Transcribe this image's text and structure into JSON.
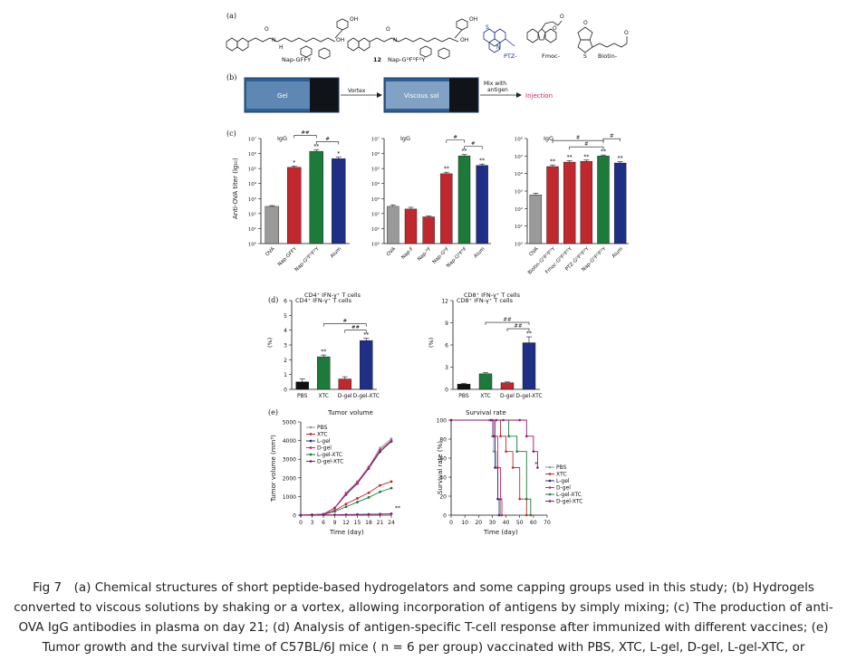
{
  "colors": {
    "gray": "#9a9a9a",
    "red": "#c0282d",
    "green": "#1c7a3a",
    "blue": "#1f2f86",
    "black": "#111111",
    "purple": "#8a1a7a",
    "pink": "#d21e6e",
    "gel_bg": "#2f5f95"
  },
  "panel_a": {
    "label": "(a)",
    "names": [
      "Nap-GFFY",
      "12",
      "Nap-GᴰFᴰFᴰY",
      "PTZ-",
      "Fmoc-",
      "Biotin-"
    ],
    "atoms": [
      "OH",
      "O",
      "H",
      "N",
      "S"
    ]
  },
  "panel_b": {
    "label": "(b)",
    "vial1_text": "Gel",
    "arrow1_text": "Vortex",
    "vial2_text": "Viscous sol",
    "arrow2_text": [
      "Mix with",
      "antigen"
    ],
    "injection_text": "Injection"
  },
  "panel_c": {
    "label": "(c)",
    "ylabel": "Anti-OVA titer (lg₁₀)",
    "title": "IgG",
    "y_ticks": [
      "10⁰",
      "10¹",
      "10²",
      "10³",
      "10⁴",
      "10⁵",
      "10⁶",
      "10⁷"
    ],
    "sig": [
      "**",
      "*",
      "##",
      "#"
    ]
  },
  "panel_d": {
    "label": "(d)",
    "ylabel": "(%)",
    "titles": [
      "CD4⁺ IFN-γ⁺ T cells",
      "CD8⁺ IFN-γ⁺ T cells"
    ]
  },
  "panel_e": {
    "label": "(e)",
    "left_title": "Tumor volume",
    "left_ylabel": "Tumor volume (mm³)",
    "left_xlabel": "Time (day)",
    "right_title": "Survival rate",
    "right_ylabel": "Survival rate (%)",
    "right_xlabel": "Time (day)",
    "legend": [
      "PBS",
      "XTC",
      "L-gel",
      "D-gel",
      "L-gel-XTC",
      "D-gel-XTC"
    ]
  },
  "chart_data": [
    {
      "type": "bar",
      "panel": "c-1",
      "title": "IgG",
      "ylabel": "Anti-OVA titer (lg₁₀)",
      "log_scale": true,
      "ylim": [
        1,
        10000000
      ],
      "categories": [
        "OVA",
        "Nap-GFFY",
        "Nap-GᴰFᴰFᴰY",
        "Alum"
      ],
      "values": [
        300,
        120000,
        1400000,
        450000
      ],
      "errors": [
        40,
        25000,
        350000,
        120000
      ],
      "colors": [
        "#9a9a9a",
        "#c0282d",
        "#1c7a3a",
        "#1f2f86"
      ],
      "marks": [
        "",
        "*",
        "**",
        "*"
      ],
      "brackets": [
        {
          "from": 1,
          "to": 2,
          "label": "##"
        },
        {
          "from": 2,
          "to": 3,
          "label": "#"
        }
      ]
    },
    {
      "type": "bar",
      "panel": "c-2",
      "title": "IgG",
      "log_scale": true,
      "ylim": [
        1,
        10000000
      ],
      "categories": [
        "OVA",
        "Nap-F",
        "Nap-ᴰF",
        "Nap-GᴰF",
        "Nap-GᴰFᴰF",
        "Alum"
      ],
      "values": [
        300,
        200,
        60,
        45000,
        700000,
        160000
      ],
      "errors": [
        80,
        60,
        8,
        12000,
        150000,
        40000
      ],
      "colors": [
        "#9a9a9a",
        "#c0282d",
        "#c0282d",
        "#c0282d",
        "#1c7a3a",
        "#1f2f86"
      ],
      "marks": [
        "",
        "",
        "",
        "**",
        "**",
        "**"
      ],
      "brackets": [
        {
          "from": 3,
          "to": 4,
          "label": "#"
        },
        {
          "from": 4,
          "to": 5,
          "label": "#"
        }
      ]
    },
    {
      "type": "bar",
      "panel": "c-3",
      "title": "IgG",
      "log_scale": true,
      "ylim": [
        1,
        1000000
      ],
      "categories": [
        "OVA",
        "Biotin-GᴰFᴰFᴰY",
        "Fmoc-GᴰFᴰFᴰY",
        "PTZ-GᴰFᴰFᴰY",
        "Nap-GᴰFᴰFᴰY",
        "Alum"
      ],
      "values": [
        600,
        25000,
        45000,
        50000,
        100000,
        40000
      ],
      "errors": [
        150,
        6000,
        9000,
        9000,
        15000,
        8000
      ],
      "colors": [
        "#9a9a9a",
        "#c0282d",
        "#c0282d",
        "#c0282d",
        "#1c7a3a",
        "#1f2f86"
      ],
      "marks": [
        "",
        "**",
        "**",
        "**",
        "**",
        "**"
      ],
      "brackets": [
        {
          "from": 1,
          "to": 4,
          "label": "#"
        },
        {
          "from": 2,
          "to": 4,
          "label": "#"
        },
        {
          "from": 4,
          "to": 5,
          "label": "#"
        }
      ]
    },
    {
      "type": "bar",
      "panel": "d-1",
      "title": "CD4⁺ IFN-γ⁺ T cells",
      "ylabel": "(%)",
      "ylim": [
        0,
        6
      ],
      "y_ticks": [
        0,
        1,
        2,
        3,
        4,
        5,
        6
      ],
      "categories": [
        "PBS",
        "XTC",
        "D-gel",
        "D-gel-XTC"
      ],
      "values": [
        0.5,
        2.2,
        0.7,
        3.3
      ],
      "errors": [
        0.2,
        0.12,
        0.15,
        0.15
      ],
      "colors": [
        "#111111",
        "#1c7a3a",
        "#c0282d",
        "#1f2f86"
      ],
      "marks": [
        "",
        "**",
        "",
        "**"
      ],
      "brackets": [
        {
          "from": 1,
          "to": 3,
          "label": "#"
        },
        {
          "from": 2,
          "to": 3,
          "label": "##"
        }
      ]
    },
    {
      "type": "bar",
      "panel": "d-2",
      "title": "CD8⁺ IFN-γ⁺ T cells",
      "ylabel": "(%)",
      "ylim": [
        0,
        12
      ],
      "y_ticks": [
        0,
        3,
        6,
        9,
        12
      ],
      "categories": [
        "PBS",
        "XTC",
        "D-gel",
        "D-gel-XTC"
      ],
      "values": [
        0.7,
        2.1,
        0.9,
        6.3
      ],
      "errors": [
        0.1,
        0.15,
        0.1,
        0.8
      ],
      "colors": [
        "#111111",
        "#1c7a3a",
        "#c0282d",
        "#1f2f86"
      ],
      "marks": [
        "",
        "",
        "",
        "**"
      ],
      "brackets": [
        {
          "from": 1,
          "to": 3,
          "label": "##"
        },
        {
          "from": 2,
          "to": 3,
          "label": "##"
        }
      ]
    },
    {
      "type": "line",
      "panel": "e-1",
      "title": "Tumor volume",
      "xlabel": "Time (day)",
      "ylabel": "Tumor volume (mm³)",
      "xlim": [
        0,
        24
      ],
      "ylim": [
        0,
        5000
      ],
      "x_ticks": [
        0,
        3,
        6,
        9,
        12,
        15,
        18,
        21,
        24
      ],
      "y_ticks": [
        0,
        1000,
        2000,
        3000,
        4000,
        5000
      ],
      "x": [
        0,
        3,
        6,
        9,
        12,
        15,
        18,
        21,
        24
      ],
      "series": [
        {
          "name": "PBS",
          "color": "#9a9a9a",
          "values": [
            0,
            20,
            50,
            400,
            1200,
            1800,
            2600,
            3600,
            4100
          ]
        },
        {
          "name": "XTC",
          "color": "#c0282d",
          "values": [
            0,
            15,
            40,
            250,
            600,
            900,
            1200,
            1600,
            1800
          ]
        },
        {
          "name": "L-gel",
          "color": "#1f2f86",
          "values": [
            0,
            20,
            50,
            380,
            1100,
            1700,
            2500,
            3400,
            3950
          ]
        },
        {
          "name": "D-gel",
          "color": "#d21e6e",
          "values": [
            0,
            20,
            50,
            390,
            1150,
            1750,
            2550,
            3500,
            4000
          ]
        },
        {
          "name": "L-gel-XTC",
          "color": "#1c7a3a",
          "values": [
            0,
            15,
            30,
            200,
            450,
            700,
            950,
            1250,
            1450
          ]
        },
        {
          "name": "D-gel-XTC",
          "color": "#8a1a7a",
          "values": [
            0,
            10,
            15,
            20,
            30,
            40,
            50,
            60,
            80
          ]
        }
      ],
      "annotations": [
        "**"
      ]
    },
    {
      "type": "line",
      "panel": "e-2",
      "title": "Survival rate",
      "xlabel": "Time (day)",
      "ylabel": "Survival rate (%)",
      "xlim": [
        0,
        70
      ],
      "ylim": [
        0,
        100
      ],
      "x_ticks": [
        0,
        10,
        20,
        30,
        40,
        50,
        60,
        70
      ],
      "y_ticks": [
        0,
        20,
        40,
        60,
        80,
        100
      ],
      "series": [
        {
          "name": "PBS",
          "color": "#9a9a9a",
          "x": [
            0,
            28,
            30,
            31,
            33,
            34,
            36
          ],
          "values": [
            100,
            100,
            83,
            67,
            50,
            17,
            0
          ]
        },
        {
          "name": "XTC",
          "color": "#c0282d",
          "x": [
            0,
            33,
            36,
            40,
            45,
            50,
            55
          ],
          "values": [
            100,
            100,
            83,
            67,
            50,
            17,
            0
          ]
        },
        {
          "name": "L-gel",
          "color": "#1f2f86",
          "x": [
            0,
            29,
            31,
            32,
            34,
            35
          ],
          "values": [
            100,
            100,
            83,
            50,
            17,
            0
          ]
        },
        {
          "name": "D-gel",
          "color": "#d21e6e",
          "x": [
            0,
            30,
            32,
            34,
            36,
            37
          ],
          "values": [
            100,
            100,
            83,
            50,
            17,
            0
          ]
        },
        {
          "name": "L-gel-XTC",
          "color": "#1c7a3a",
          "x": [
            0,
            38,
            42,
            48,
            55,
            58
          ],
          "values": [
            100,
            100,
            83,
            67,
            17,
            0
          ]
        },
        {
          "name": "D-gel-XTC",
          "color": "#8a1a7a",
          "x": [
            0,
            50,
            55,
            60,
            63
          ],
          "values": [
            100,
            100,
            83,
            67,
            50
          ]
        }
      ],
      "annotations": [
        "*"
      ]
    }
  ],
  "caption": "Fig 7 (a) Chemical structures of short peptide-based hydrogelators and some capping groups used in this study; (b) Hydrogels converted to viscous solutions by shaking or a vortex, allowing incorporation of antigens by simply mixing; (c) The production of anti-OVA IgG antibodies in plasma on day 21; (d) Analysis of antigen-specific T-cell response after immunized with different vaccines; (e) Tumor growth and the survival time of C57BL/6J mice ( n = 6 per group) vaccinated with PBS, XTC, L-gel, D-gel, L-gel-XTC, or"
}
